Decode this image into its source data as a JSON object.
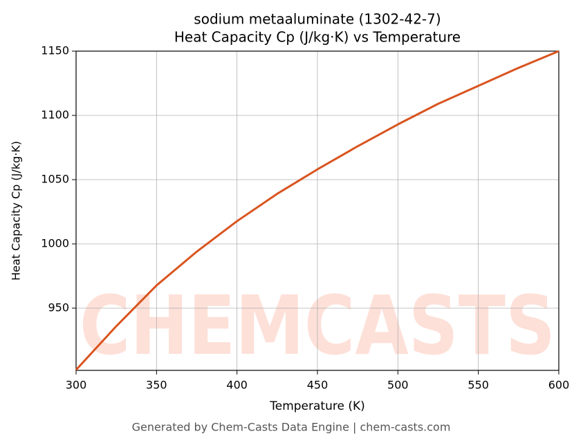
{
  "chart_data": {
    "type": "line",
    "title": "sodium metaaluminate (1302-42-7)",
    "subtitle": "Heat Capacity Cp (J/kg·K) vs Temperature",
    "x_label": "Temperature (K)",
    "y_label": "Heat Capacity Cp (J/kg·K)",
    "watermark": "CHEMCASTS",
    "footer": "Generated by Chem-Casts Data Engine | chem-casts.com",
    "x": [
      300,
      325,
      350,
      375,
      400,
      425,
      450,
      475,
      500,
      525,
      550,
      575,
      600
    ],
    "series": [
      {
        "name": "Heat Capacity Cp",
        "color": "#d9541f",
        "values": [
          902,
          936,
          967.7,
          994,
          1017.7,
          1039,
          1058,
          1076,
          1093,
          1109,
          1123,
          1137,
          1150
        ]
      }
    ],
    "xlim": [
      300,
      600
    ],
    "xticks": [
      300,
      350,
      400,
      450,
      500,
      550,
      600
    ],
    "ylim": [
      901.6,
      1150
    ],
    "yticks": [
      950,
      1000,
      1050,
      1100,
      1150
    ],
    "grid": true
  }
}
